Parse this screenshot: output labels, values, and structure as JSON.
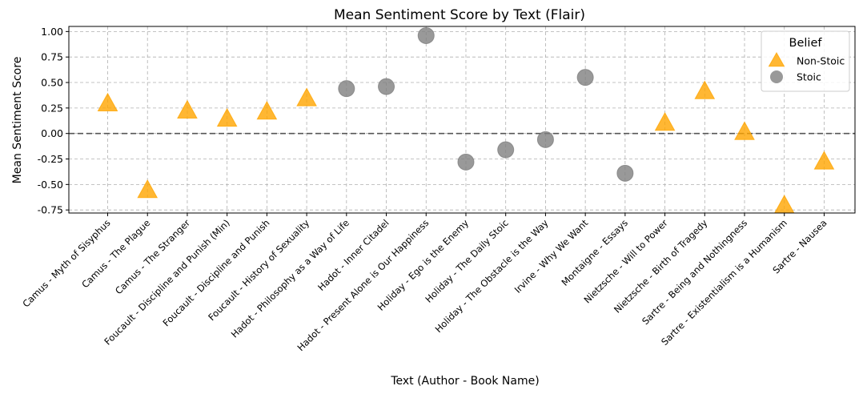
{
  "chart_data": {
    "type": "scatter",
    "title": "Mean Sentiment Score by Text (Flair)",
    "xlabel": "Text (Author - Book Name)",
    "ylabel": "Mean Sentiment Score",
    "ylim": [
      -0.78,
      1.05
    ],
    "yticks": [
      "1.00",
      "0.75",
      "0.50",
      "0.25",
      "0.00",
      "-0.25",
      "-0.50",
      "-0.75"
    ],
    "ytick_values": [
      1.0,
      0.75,
      0.5,
      0.25,
      0.0,
      -0.25,
      -0.5,
      -0.75
    ],
    "grid": true,
    "reference_line": 0.0,
    "categories": [
      "Camus - Myth of Sisyphus",
      "Camus - The Plague",
      "Camus - The Stranger",
      "Foucault - Discipline and Punish (Min)",
      "Foucault - Discipline and Punish",
      "Foucault - History of Sexuality",
      "Hadot - Philosophy as a Way of Life",
      "Hadot - Inner Citadel",
      "Hadot - Present Alone is Our Happiness",
      "Holiday - Ego is the Enemy",
      "Holiday - The Daily Stoic",
      "Holiday - The Obstacle is the Way",
      "Irvine - Why We Want",
      "Montaigne - Essays",
      "Nietzsche - Will to Power",
      "Nietzsche - Birth of Tragedy",
      "Sartre - Being and Nothingness",
      "Sartre - Existentialism is a Humanism",
      "Sartre - Nausea"
    ],
    "legend": {
      "title": "Belief",
      "position": "top-right"
    },
    "series": [
      {
        "name": "Non-Stoic",
        "marker": "triangle",
        "color": "#FFA500",
        "points": [
          {
            "x": "Camus - Myth of Sisyphus",
            "y": 0.29
          },
          {
            "x": "Camus - The Plague",
            "y": -0.56
          },
          {
            "x": "Camus - The Stranger",
            "y": 0.22
          },
          {
            "x": "Foucault - Discipline and Punish (Min)",
            "y": 0.14
          },
          {
            "x": "Foucault - Discipline and Punish",
            "y": 0.21
          },
          {
            "x": "Foucault - History of Sexuality",
            "y": 0.34
          },
          {
            "x": "Nietzsche - Will to Power",
            "y": 0.1
          },
          {
            "x": "Nietzsche - Birth of Tragedy",
            "y": 0.41
          },
          {
            "x": "Sartre - Being and Nothingness",
            "y": 0.01
          },
          {
            "x": "Sartre - Existentialism is a Humanism",
            "y": -0.71
          },
          {
            "x": "Sartre - Nausea",
            "y": -0.28
          }
        ]
      },
      {
        "name": "Stoic",
        "marker": "circle",
        "color": "#808080",
        "points": [
          {
            "x": "Hadot - Philosophy as a Way of Life",
            "y": 0.44
          },
          {
            "x": "Hadot - Inner Citadel",
            "y": 0.46
          },
          {
            "x": "Hadot - Present Alone is Our Happiness",
            "y": 0.96
          },
          {
            "x": "Holiday - Ego is the Enemy",
            "y": -0.28
          },
          {
            "x": "Holiday - The Daily Stoic",
            "y": -0.16
          },
          {
            "x": "Holiday - The Obstacle is the Way",
            "y": -0.06
          },
          {
            "x": "Irvine - Why We Want",
            "y": 0.55
          },
          {
            "x": "Montaigne - Essays",
            "y": -0.39
          }
        ]
      }
    ]
  }
}
